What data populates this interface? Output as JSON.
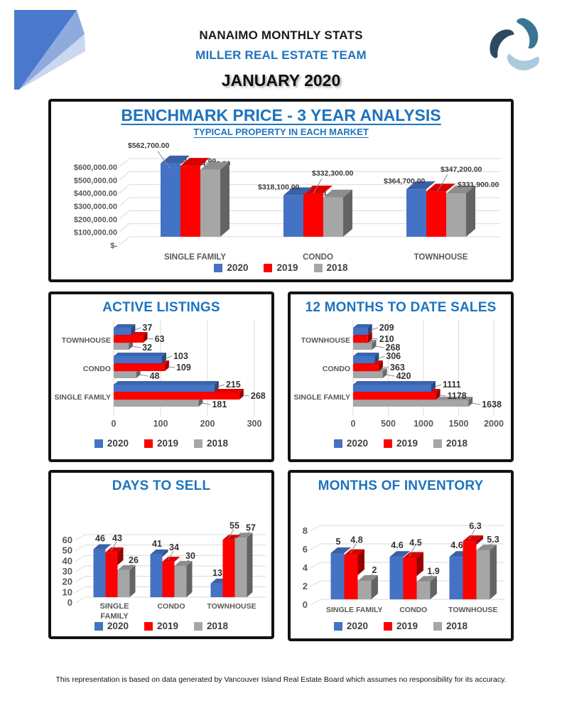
{
  "header": {
    "title": "NANAIMO MONTHLY STATS",
    "team": "MILLER REAL ESTATE TEAM",
    "month": "JANUARY 2020"
  },
  "footer": {
    "disclaimer": "This representation is based on data generated by Vancouver Island Real Estate Board which assumes no responsibility for its accuracy."
  },
  "colors": {
    "accent": "#1E73BE",
    "series": {
      "2020": "#4472C4",
      "2019": "#FF0000",
      "2018": "#A6A6A6"
    }
  },
  "chart_data": [
    {
      "id": "benchmark_price",
      "type": "bar",
      "variant": "3d-column",
      "title": "BENCHMARK PRICE - 3 YEAR ANALYSIS",
      "subtitle": "TYPICAL PROPERTY IN EACH MARKET",
      "categories": [
        "SINGLE FAMILY",
        "CONDO",
        "TOWNHOUSE"
      ],
      "series": [
        {
          "name": "2020",
          "values": [
            562700,
            318100,
            364700
          ],
          "labels": [
            "$562,700.00",
            "$318,100.00",
            "$364,700.00"
          ]
        },
        {
          "name": "2019",
          "values": [
            544700,
            332300,
            347200
          ],
          "labels": [
            "$544,700.00",
            "$332,300.00",
            "$347,200.00"
          ]
        },
        {
          "name": "2018",
          "values": [
            514400,
            301400,
            331900
          ],
          "labels": [
            "$514,400.00",
            "$301,400.00",
            "$331,900.00"
          ]
        }
      ],
      "y_ticks": [
        "$600,000.00",
        "$500,000.00",
        "$400,000.00",
        "$300,000.00",
        "$200,000.00",
        "$100,000.00",
        "$-"
      ],
      "ylim": [
        0,
        600000
      ],
      "grid": true,
      "legend": [
        "2020",
        "2019",
        "2018"
      ],
      "legend_position": "bottom"
    },
    {
      "id": "active_listings",
      "type": "bar",
      "variant": "3d-bar-horizontal",
      "title": "ACTIVE LISTINGS",
      "categories": [
        "TOWNHOUSE",
        "CONDO",
        "SINGLE FAMILY"
      ],
      "series": [
        {
          "name": "2020",
          "values": [
            37,
            103,
            215
          ],
          "labels": [
            "37",
            "103",
            "215"
          ]
        },
        {
          "name": "2019",
          "values": [
            63,
            109,
            268
          ],
          "labels": [
            "63",
            "109",
            "268"
          ]
        },
        {
          "name": "2018",
          "values": [
            32,
            48,
            181
          ],
          "labels": [
            "32",
            "48",
            "181"
          ]
        }
      ],
      "x_ticks": [
        "0",
        "100",
        "200",
        "300"
      ],
      "xlim": [
        0,
        300
      ],
      "grid": true,
      "legend": [
        "2020",
        "2019",
        "2018"
      ],
      "legend_position": "bottom"
    },
    {
      "id": "twelve_months_to_date_sales",
      "type": "bar",
      "variant": "3d-bar-horizontal",
      "title": "12 MONTHS TO DATE SALES",
      "categories": [
        "TOWNHOUSE",
        "CONDO",
        "SINGLE FAMILY"
      ],
      "series": [
        {
          "name": "2020",
          "values": [
            209,
            306,
            1111
          ],
          "labels": [
            "209",
            "306",
            "1111"
          ]
        },
        {
          "name": "2019",
          "values": [
            210,
            363,
            1178
          ],
          "labels": [
            "210",
            "363",
            "1178"
          ]
        },
        {
          "name": "2018",
          "values": [
            268,
            420,
            1638
          ],
          "labels": [
            "268",
            "420",
            "1638"
          ]
        }
      ],
      "x_ticks": [
        "0",
        "500",
        "1000",
        "1500",
        "2000"
      ],
      "xlim": [
        0,
        2000
      ],
      "grid": true,
      "legend": [
        "2020",
        "2019",
        "2018"
      ],
      "legend_position": "bottom"
    },
    {
      "id": "days_to_sell",
      "type": "bar",
      "variant": "3d-column",
      "title": "DAYS TO SELL",
      "categories": [
        "SINGLE FAMILY",
        "CONDO",
        "TOWNHOUSE"
      ],
      "series": [
        {
          "name": "2020",
          "values": [
            46,
            41,
            13
          ],
          "labels": [
            "46",
            "41",
            "13"
          ]
        },
        {
          "name": "2019",
          "values": [
            43,
            34,
            55
          ],
          "labels": [
            "43",
            "34",
            "55"
          ]
        },
        {
          "name": "2018",
          "values": [
            26,
            30,
            57
          ],
          "labels": [
            "26",
            "30",
            "57"
          ]
        }
      ],
      "y_ticks": [
        "0",
        "10",
        "20",
        "30",
        "40",
        "50",
        "60"
      ],
      "ylim": [
        0,
        60
      ],
      "grid": true,
      "legend": [
        "2020",
        "2019",
        "2018"
      ],
      "legend_position": "bottom"
    },
    {
      "id": "months_of_inventory",
      "type": "bar",
      "variant": "3d-column",
      "title": "MONTHS OF INVENTORY",
      "categories": [
        "SINGLE FAMILY",
        "CONDO",
        "TOWNHOUSE"
      ],
      "series": [
        {
          "name": "2020",
          "values": [
            5,
            4.6,
            4.6
          ],
          "labels": [
            "5",
            "4.6",
            "4.6"
          ]
        },
        {
          "name": "2019",
          "values": [
            4.8,
            4.5,
            6.3
          ],
          "labels": [
            "4.8",
            "4.5",
            "6.3"
          ]
        },
        {
          "name": "2018",
          "values": [
            2,
            1.9,
            5.3
          ],
          "labels": [
            "2",
            "1.9",
            "5.3"
          ]
        }
      ],
      "y_ticks": [
        "0",
        "2",
        "4",
        "6",
        "8"
      ],
      "ylim": [
        0,
        8
      ],
      "grid": true,
      "legend": [
        "2020",
        "2019",
        "2018"
      ],
      "legend_position": "bottom"
    }
  ]
}
